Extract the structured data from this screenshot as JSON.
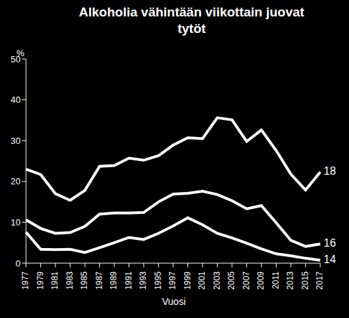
{
  "chart_data": {
    "type": "line",
    "title": "Alkoholia vähintään viikottain juovat tytöt",
    "y_label": "%",
    "x_label": "Vuosi",
    "categories": [
      "1977",
      "1979",
      "1981",
      "1983",
      "1985",
      "1987",
      "1989",
      "1991",
      "1993",
      "1995",
      "1997",
      "1999",
      "2001",
      "2003",
      "2005",
      "2007",
      "2009",
      "2011",
      "2013",
      "2015",
      "2017"
    ],
    "series": [
      {
        "name": "18",
        "color": "#ffffff",
        "values": [
          23,
          21.7,
          17,
          15.4,
          17.8,
          23.7,
          23.9,
          25.7,
          25.2,
          26.3,
          28.9,
          30.7,
          30.5,
          35.6,
          35.1,
          29.8,
          32.6,
          27.6,
          21.8,
          17.9,
          22.3
        ]
      },
      {
        "name": "16",
        "color": "#ffffff",
        "values": [
          10.6,
          8.5,
          7.3,
          7.5,
          9,
          12,
          12.3,
          12.3,
          12.4,
          15,
          16.9,
          17.1,
          17.6,
          16.8,
          15.3,
          13.3,
          14.1,
          9.9,
          5.6,
          4.1,
          4.7
        ]
      },
      {
        "name": "14",
        "color": "#ffffff",
        "values": [
          7.6,
          3.4,
          3.3,
          3.4,
          2.6,
          3.8,
          5,
          6.3,
          5.8,
          7.3,
          9.1,
          11.1,
          9.4,
          7.3,
          6.2,
          4.9,
          3.5,
          2.3,
          1.8,
          1.2,
          0.7
        ]
      }
    ],
    "ylim": [
      0,
      50
    ],
    "yticks": [
      0,
      10,
      20,
      30,
      40,
      50
    ],
    "grid": false
  }
}
